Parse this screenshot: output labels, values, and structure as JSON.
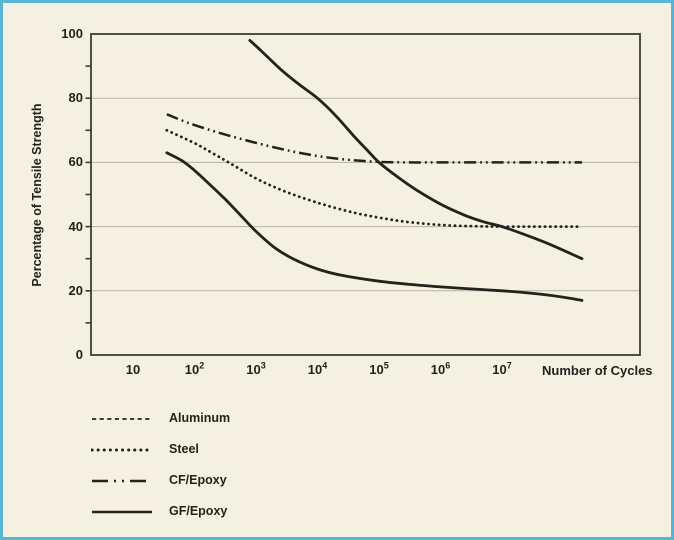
{
  "figure": {
    "background_color": "#f5f1e2",
    "border_color": "#5ab5d5",
    "ink_color": "#24221d",
    "gridline_color": "#b6b3a6",
    "frame_color": "#3e3c35"
  },
  "chart_data": {
    "type": "line",
    "title": "",
    "x_axis": {
      "label": "Number of Cycles",
      "scale": "log10",
      "tick_base": "10",
      "tick_exponents": [
        1,
        2,
        3,
        4,
        5,
        6,
        7
      ],
      "range_log10": [
        0.3,
        9.2
      ]
    },
    "y_axis": {
      "label": "Percentage of Tensile Strength",
      "ticks": [
        0,
        20,
        40,
        60,
        80,
        100
      ],
      "gridlines": [
        20,
        40,
        60,
        80
      ],
      "minor_tick_step": 10,
      "range": [
        0,
        100
      ]
    },
    "legend": {
      "position": "bottom-left",
      "entries": [
        "Aluminum",
        "Steel",
        "CF/Epoxy",
        "GF/Epoxy"
      ]
    },
    "series": [
      {
        "name": "Aluminum",
        "color": "#24221d",
        "legend_style": "dashed",
        "plot_style": "solid",
        "points_log10_percent": [
          [
            2.9,
            98
          ],
          [
            3.1,
            94.5
          ],
          [
            3.4,
            89
          ],
          [
            3.7,
            84.3
          ],
          [
            4.0,
            80
          ],
          [
            4.3,
            74.5
          ],
          [
            4.6,
            68
          ],
          [
            4.8,
            64
          ],
          [
            5.0,
            60
          ],
          [
            5.3,
            55.5
          ],
          [
            5.6,
            51.5
          ],
          [
            6.0,
            47
          ],
          [
            6.4,
            43.5
          ],
          [
            6.7,
            41.5
          ],
          [
            7.0,
            40
          ],
          [
            7.4,
            37.3
          ],
          [
            7.8,
            34.3
          ],
          [
            8.3,
            30
          ]
        ]
      },
      {
        "name": "Steel",
        "color": "#24221d",
        "legend_style": "dotted",
        "plot_style": "dotted",
        "points_log10_percent": [
          [
            1.55,
            70
          ],
          [
            2.0,
            66
          ],
          [
            2.3,
            62.8
          ],
          [
            2.6,
            59.5
          ],
          [
            3.0,
            55
          ],
          [
            3.4,
            51.5
          ],
          [
            3.8,
            48.7
          ],
          [
            4.2,
            46.3
          ],
          [
            4.6,
            44.3
          ],
          [
            5.0,
            42.8
          ],
          [
            5.4,
            41.6
          ],
          [
            5.8,
            40.8
          ],
          [
            6.2,
            40.3
          ],
          [
            6.6,
            40.1
          ],
          [
            7.0,
            40
          ],
          [
            7.6,
            40
          ],
          [
            8.3,
            40
          ]
        ]
      },
      {
        "name": "CF/Epoxy",
        "color": "#24221d",
        "legend_style": "dash-dot-dot",
        "plot_style": "dash-dot-dot",
        "points_log10_percent": [
          [
            1.55,
            75
          ],
          [
            1.9,
            72.3
          ],
          [
            2.3,
            69.8
          ],
          [
            2.7,
            67.6
          ],
          [
            3.1,
            65.6
          ],
          [
            3.5,
            63.8
          ],
          [
            3.9,
            62.3
          ],
          [
            4.3,
            61.2
          ],
          [
            4.7,
            60.5
          ],
          [
            5.1,
            60.1
          ],
          [
            5.5,
            60
          ],
          [
            6.0,
            60
          ],
          [
            6.5,
            60
          ],
          [
            7.0,
            60
          ],
          [
            7.6,
            60
          ],
          [
            8.3,
            60
          ]
        ]
      },
      {
        "name": "GF/Epoxy",
        "color": "#24221d",
        "legend_style": "solid",
        "plot_style": "solid",
        "points_log10_percent": [
          [
            1.55,
            63
          ],
          [
            1.8,
            60.5
          ],
          [
            2.0,
            57.5
          ],
          [
            2.2,
            54
          ],
          [
            2.5,
            48.5
          ],
          [
            2.8,
            42.5
          ],
          [
            3.0,
            38.5
          ],
          [
            3.3,
            33.5
          ],
          [
            3.6,
            30
          ],
          [
            4.0,
            26.8
          ],
          [
            4.4,
            24.8
          ],
          [
            5.0,
            23
          ],
          [
            5.5,
            22
          ],
          [
            6.0,
            21.2
          ],
          [
            6.5,
            20.6
          ],
          [
            7.0,
            20
          ],
          [
            7.5,
            19.2
          ],
          [
            8.0,
            18
          ],
          [
            8.3,
            17
          ]
        ]
      }
    ]
  }
}
